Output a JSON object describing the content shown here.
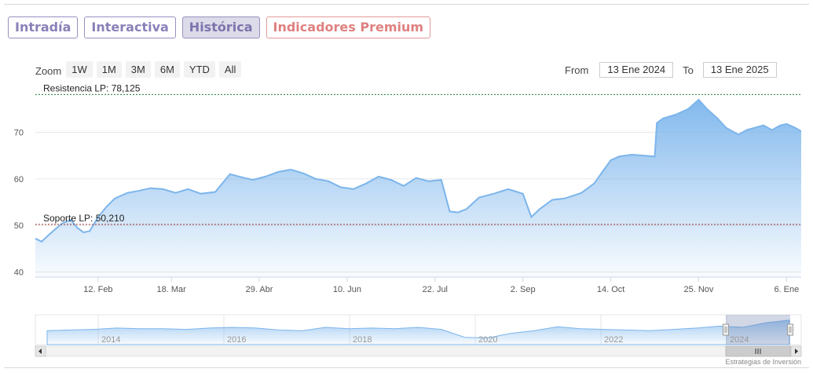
{
  "tabs": [
    {
      "label": "Intradía",
      "active": false
    },
    {
      "label": "Interactiva",
      "active": false
    },
    {
      "label": "Histórica",
      "active": true
    },
    {
      "label": "Indicadores Premium",
      "active": false
    }
  ],
  "zoom": {
    "label": "Zoom",
    "buttons": [
      "1W",
      "1M",
      "3M",
      "6M",
      "YTD",
      "All"
    ]
  },
  "range": {
    "from_label": "From",
    "from_value": "13 Ene 2024",
    "to_label": "To",
    "to_value": "13 Ene 2025"
  },
  "credit": "Estrategias de Inversión",
  "chart_data": {
    "type": "area",
    "x_tick_labels": [
      "12. Feb",
      "18. Mar",
      "29. Abr",
      "10. Jun",
      "22. Jul",
      "2. Sep",
      "14. Oct",
      "25. Nov",
      "6. Ene"
    ],
    "y_ticks": [
      40,
      50,
      60,
      70
    ],
    "ylim": [
      38.9,
      79.2
    ],
    "grid": true,
    "series_color": "#7cb5ec",
    "x_start": "2024-01-13",
    "x_end": "2025-01-13",
    "x_tick_dates": [
      "2024-02-12",
      "2024-03-18",
      "2024-04-29",
      "2024-06-10",
      "2024-07-22",
      "2024-09-02",
      "2024-10-14",
      "2024-11-25",
      "2025-01-06"
    ],
    "series": [
      {
        "x": [
          "2024-01-13",
          "2024-01-16",
          "2024-01-19",
          "2024-01-22",
          "2024-01-26",
          "2024-01-30",
          "2024-02-02",
          "2024-02-05",
          "2024-02-08",
          "2024-02-12",
          "2024-02-16",
          "2024-02-20",
          "2024-02-26",
          "2024-03-02",
          "2024-03-08",
          "2024-03-14",
          "2024-03-20",
          "2024-03-26",
          "2024-04-01",
          "2024-04-08",
          "2024-04-15",
          "2024-04-22",
          "2024-04-26",
          "2024-05-02",
          "2024-05-08",
          "2024-05-14",
          "2024-05-20",
          "2024-05-26",
          "2024-06-01",
          "2024-06-07",
          "2024-06-13",
          "2024-06-19",
          "2024-06-25",
          "2024-07-01",
          "2024-07-07",
          "2024-07-13",
          "2024-07-19",
          "2024-07-25",
          "2024-07-29",
          "2024-08-02",
          "2024-08-06",
          "2024-08-12",
          "2024-08-19",
          "2024-08-26",
          "2024-09-02",
          "2024-09-06",
          "2024-09-10",
          "2024-09-16",
          "2024-09-22",
          "2024-09-30",
          "2024-10-06",
          "2024-10-10",
          "2024-10-14",
          "2024-10-18",
          "2024-10-24",
          "2024-10-30",
          "2024-11-04",
          "2024-11-05",
          "2024-11-08",
          "2024-11-14",
          "2024-11-20",
          "2024-11-25",
          "2024-11-29",
          "2024-12-04",
          "2024-12-08",
          "2024-12-14",
          "2024-12-18",
          "2024-12-22",
          "2024-12-26",
          "2024-12-30",
          "2025-01-03",
          "2025-01-06",
          "2025-01-10",
          "2025-01-13"
        ],
        "values": [
          47.2,
          46.5,
          47.8,
          49.0,
          50.5,
          51.2,
          49.5,
          48.5,
          48.8,
          51.8,
          54.0,
          55.8,
          57.0,
          57.4,
          58.0,
          57.8,
          57.0,
          57.8,
          56.8,
          57.2,
          61.0,
          60.2,
          59.8,
          60.5,
          61.5,
          62.0,
          61.2,
          60.0,
          59.5,
          58.2,
          57.8,
          59.0,
          60.5,
          59.8,
          58.5,
          60.2,
          59.5,
          59.8,
          53.0,
          52.8,
          53.5,
          56.0,
          56.8,
          57.8,
          56.8,
          51.8,
          53.5,
          55.5,
          55.8,
          57.0,
          59.0,
          61.5,
          64.0,
          64.8,
          65.2,
          65.0,
          64.8,
          72.0,
          73.0,
          73.8,
          75.0,
          77.0,
          75.0,
          73.0,
          71.0,
          69.5,
          70.5,
          71.0,
          71.5,
          70.5,
          71.5,
          71.8,
          71.0,
          70.2
        ]
      }
    ],
    "plot_lines": [
      {
        "label": "Resistencia LP: 78,125",
        "value": 78.125,
        "color": "#1f7a3a"
      },
      {
        "label": "Soporte LP: 50,210",
        "value": 50.21,
        "color": "#a03030"
      }
    ],
    "navigator": {
      "years": [
        "2014",
        "2016",
        "2018",
        "2020",
        "2022",
        "2024"
      ],
      "values": [
        56,
        57,
        58,
        60,
        59,
        59,
        58,
        60,
        61,
        60,
        57,
        56,
        61,
        59,
        60,
        59,
        61,
        58,
        46,
        45,
        52,
        56,
        62,
        59,
        58,
        57,
        56,
        58,
        60,
        63,
        61,
        68,
        72
      ]
    }
  }
}
